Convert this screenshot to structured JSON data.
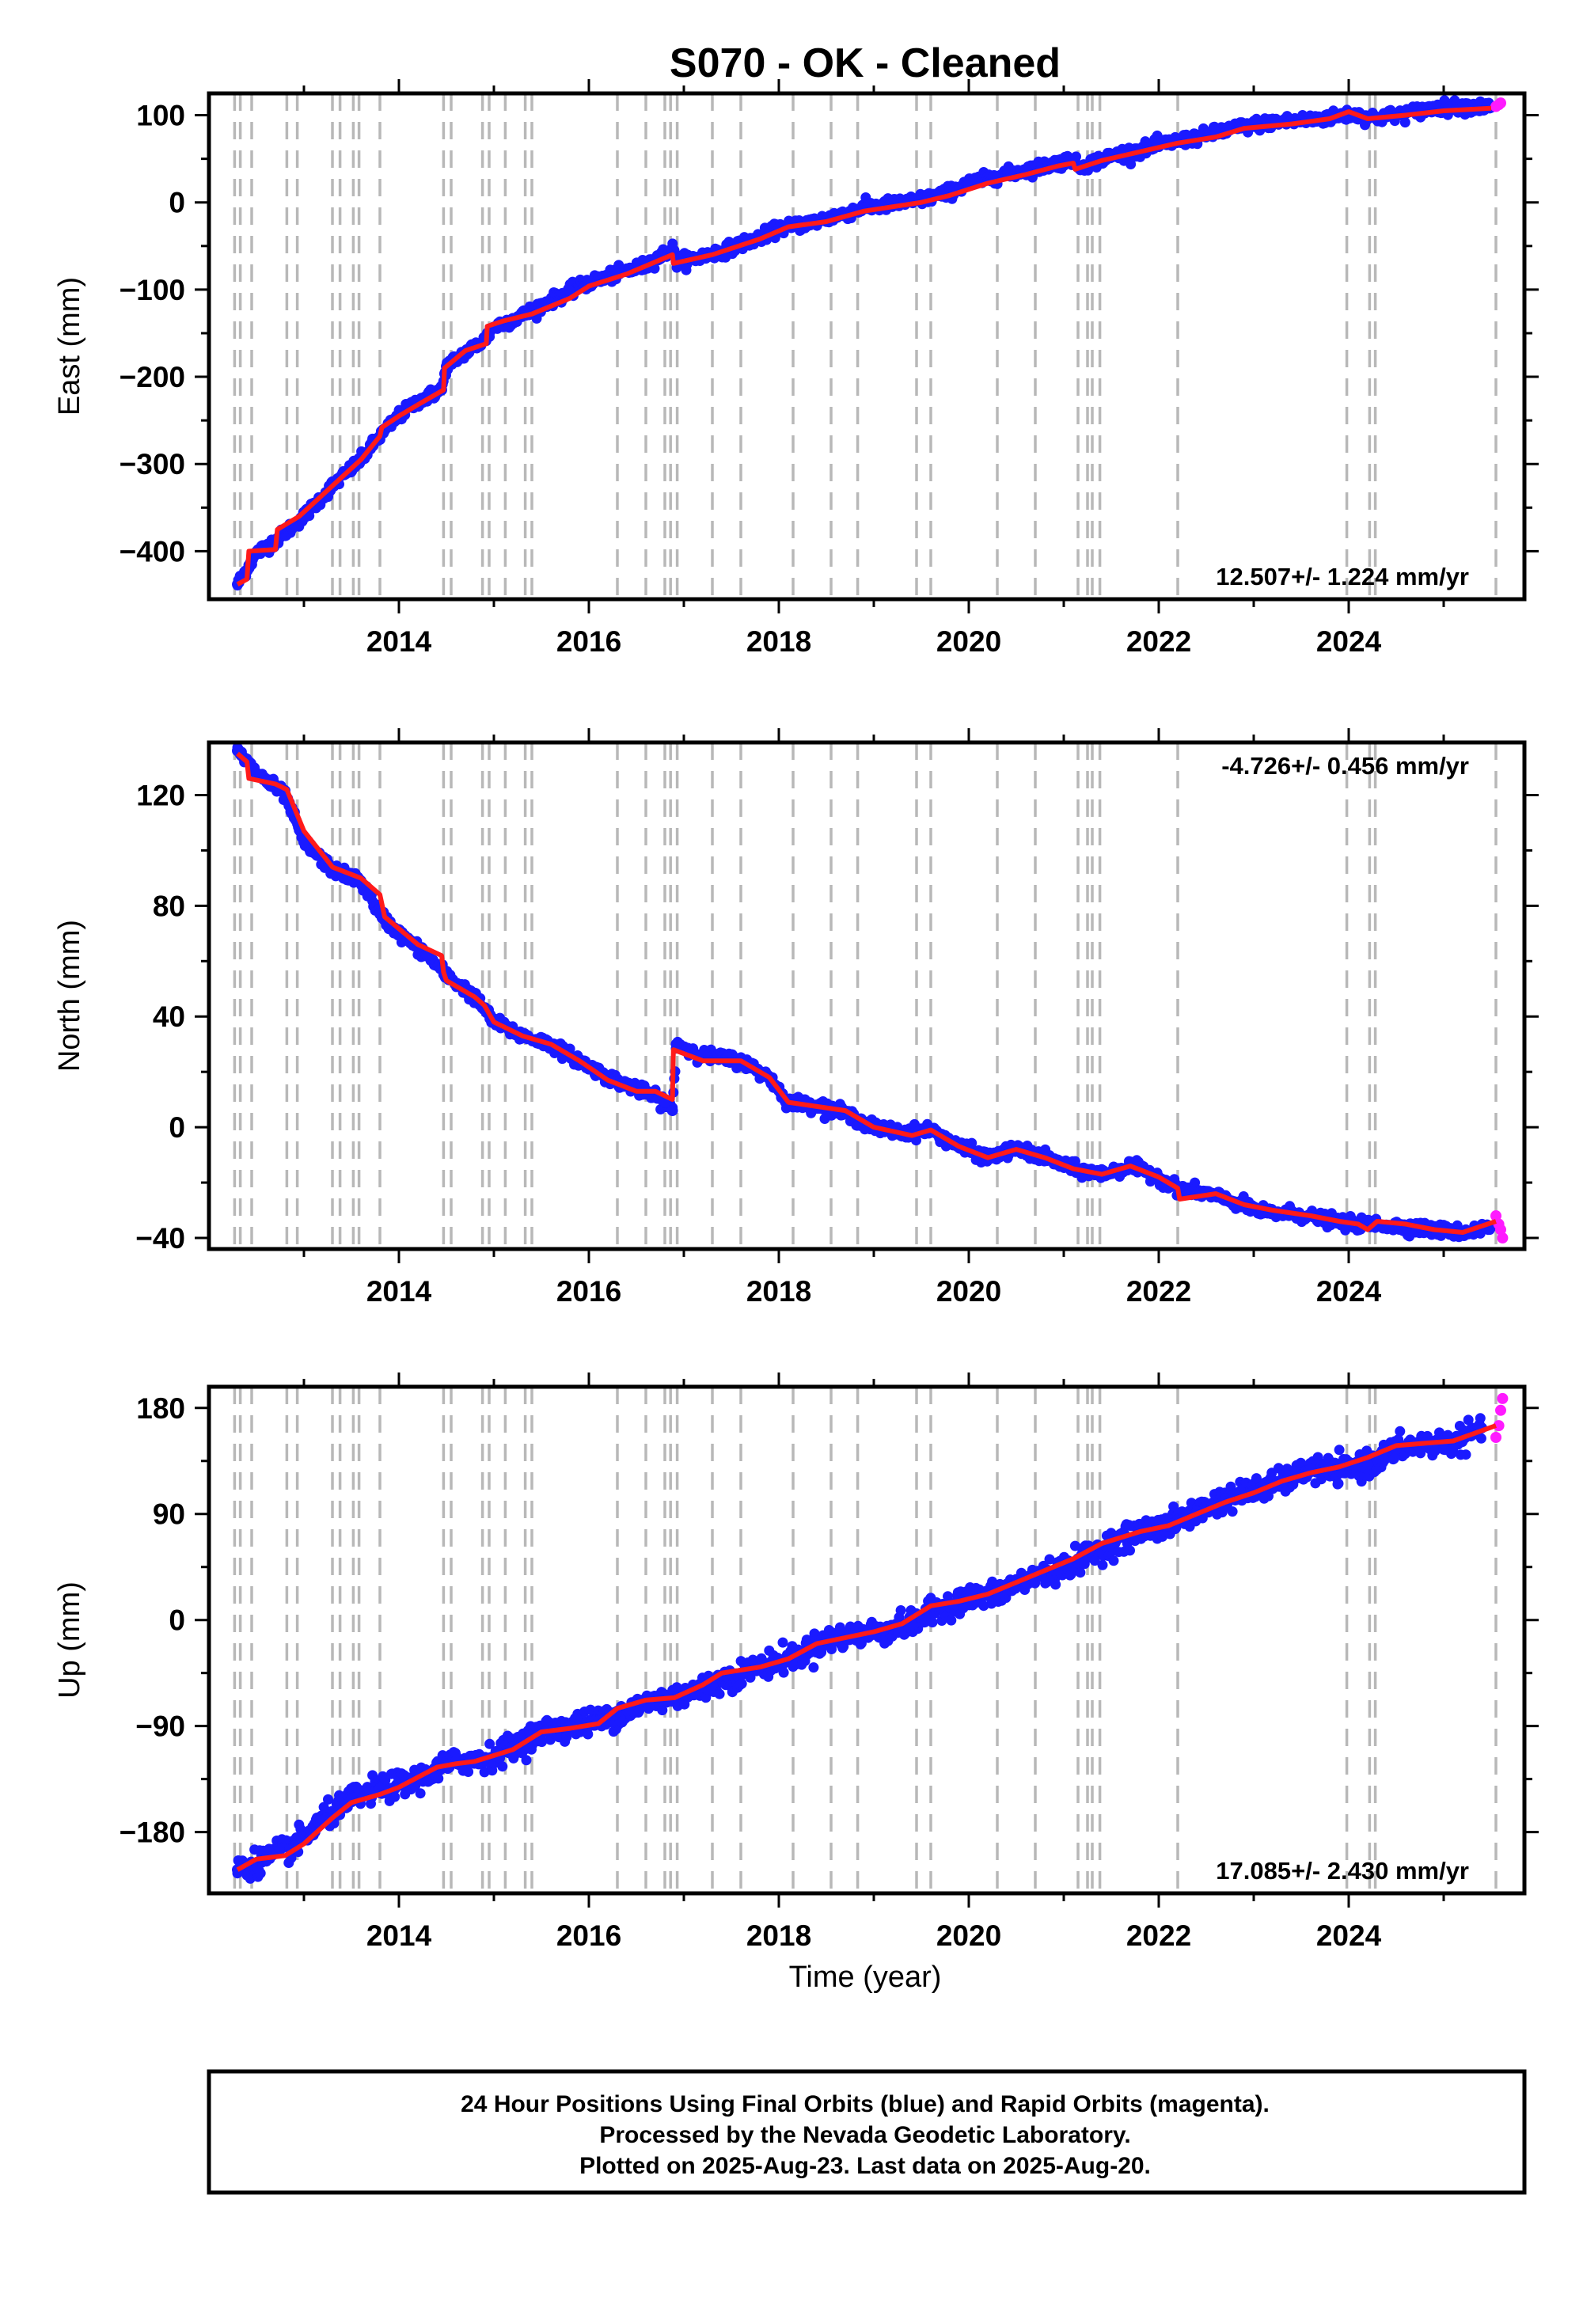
{
  "title": "S070  - OK - Cleaned",
  "xlabel": "Time (year)",
  "footer": {
    "line1": "24 Hour Positions Using Final Orbits (blue) and Rapid Orbits (magenta).",
    "line2": "Processed by the Nevada Geodetic Laboratory.",
    "line3": "Plotted on 2025-Aug-23. Last data on 2025-Aug-20."
  },
  "colors": {
    "final_points": "#1a1aff",
    "rapid_points": "#ff1aff",
    "fit_line": "#ff1a1a",
    "event_lines": "#b8b8b8",
    "frame": "#000000"
  },
  "chart_data": [
    {
      "type": "scatter",
      "panel": "east",
      "ylabel": "East (mm)",
      "rate": "12.507+/- 1.224 mm/yr",
      "rate_position": "bottom-right",
      "xlim": [
        2012.0,
        2025.85
      ],
      "ylim": [
        -455,
        125
      ],
      "xticks": [
        2014,
        2016,
        2018,
        2020,
        2022,
        2024
      ],
      "yticks": [
        -400,
        -300,
        -200,
        -100,
        0,
        100
      ],
      "ytick_labels": [
        "−400",
        "−300",
        "−200",
        "−100",
        "0",
        "100"
      ],
      "series": [
        {
          "x": [
            2012.3,
            2012.5,
            2012.7,
            2013.0,
            2013.3,
            2013.6,
            2013.8,
            2014.0,
            2014.2,
            2014.45,
            2014.5,
            2014.7,
            2014.9,
            2015.0,
            2015.3,
            2015.5,
            2015.8,
            2016.0,
            2016.3,
            2016.6,
            2016.88,
            2016.92,
            2017.2,
            2017.5,
            2017.8,
            2018.0,
            2018.3,
            2018.6,
            2018.9,
            2019.2,
            2019.5,
            2019.8,
            2020.0,
            2020.3,
            2020.6,
            2020.9,
            2021.1,
            2021.15,
            2021.5,
            2021.8,
            2022.0,
            2022.3,
            2022.6,
            2022.9,
            2023.2,
            2023.5,
            2023.8,
            2024.0,
            2024.3,
            2024.6,
            2024.9,
            2025.2,
            2025.5
          ],
          "y": [
            -438,
            -402,
            -388,
            -360,
            -325,
            -295,
            -268,
            -245,
            -228,
            -215,
            -188,
            -172,
            -158,
            -143,
            -130,
            -118,
            -102,
            -92,
            -82,
            -72,
            -53,
            -68,
            -62,
            -52,
            -40,
            -30,
            -24,
            -16,
            -6,
            -2,
            3,
            12,
            22,
            30,
            37,
            44,
            50,
            40,
            53,
            60,
            66,
            72,
            80,
            87,
            92,
            94,
            97,
            101,
            97,
            102,
            108,
            110,
            109
          ],
          "rapid_x": [
            2025.55,
            2025.58,
            2025.6
          ],
          "rapid_y": [
            110,
            112,
            114
          ],
          "fit_x": [
            2012.3,
            2012.4,
            2012.42,
            2012.7,
            2012.72,
            2012.95,
            2013.3,
            2013.6,
            2013.8,
            2013.82,
            2014.0,
            2014.2,
            2014.47,
            2014.48,
            2014.7,
            2014.92,
            2014.93,
            2015.1,
            2015.4,
            2015.8,
            2016.0,
            2016.4,
            2016.88,
            2016.89,
            2017.3,
            2017.8,
            2018.1,
            2018.5,
            2018.9,
            2019.5,
            2019.8,
            2020.2,
            2020.6,
            2020.95,
            2021.1,
            2021.12,
            2021.4,
            2021.8,
            2022.2,
            2022.6,
            2022.9,
            2023.4,
            2023.8,
            2024.0,
            2024.2,
            2024.6,
            2025.0,
            2025.5
          ],
          "fit_y": [
            -438,
            -432,
            -400,
            -398,
            -375,
            -360,
            -325,
            -295,
            -268,
            -258,
            -245,
            -232,
            -215,
            -190,
            -170,
            -162,
            -142,
            -136,
            -128,
            -110,
            -96,
            -82,
            -60,
            -70,
            -60,
            -42,
            -28,
            -22,
            -10,
            0,
            8,
            22,
            32,
            42,
            45,
            38,
            48,
            58,
            68,
            75,
            85,
            90,
            96,
            104,
            96,
            100,
            105,
            108
          ]
        }
      ]
    },
    {
      "type": "scatter",
      "panel": "north",
      "ylabel": "North (mm)",
      "rate": "-4.726+/- 0.456 mm/yr",
      "rate_position": "top-right",
      "xlim": [
        2012.0,
        2025.85
      ],
      "ylim": [
        -44,
        139
      ],
      "xticks": [
        2014,
        2016,
        2018,
        2020,
        2022,
        2024
      ],
      "yticks": [
        -40,
        0,
        40,
        80,
        120
      ],
      "ytick_labels": [
        "−40",
        "0",
        "40",
        "80",
        "120"
      ],
      "series": [
        {
          "x": [
            2012.3,
            2012.5,
            2012.8,
            2013.0,
            2013.3,
            2013.6,
            2013.8,
            2014.0,
            2014.3,
            2014.5,
            2014.8,
            2015.0,
            2015.3,
            2015.6,
            2015.9,
            2016.2,
            2016.5,
            2016.8,
            2016.88,
            2016.92,
            2017.2,
            2017.6,
            2017.9,
            2018.1,
            2018.4,
            2018.7,
            2019.0,
            2019.3,
            2019.6,
            2019.9,
            2020.2,
            2020.5,
            2020.8,
            2021.1,
            2021.4,
            2021.7,
            2022.0,
            2022.2,
            2022.5,
            2022.8,
            2023.1,
            2023.4,
            2023.7,
            2024.0,
            2024.3,
            2024.6,
            2024.9,
            2025.2,
            2025.5
          ],
          "y": [
            136,
            128,
            120,
            103,
            93,
            89,
            77,
            70,
            62,
            55,
            47,
            38,
            33,
            30,
            24,
            18,
            14,
            9,
            6,
            30,
            26,
            24,
            18,
            9,
            8,
            5,
            0,
            -2,
            -1,
            -7,
            -11,
            -8,
            -11,
            -15,
            -17,
            -14,
            -18,
            -22,
            -24,
            -27,
            -31,
            -31,
            -33,
            -35,
            -35,
            -36,
            -37,
            -38,
            -36
          ],
          "rapid_x": [
            2025.55,
            2025.58,
            2025.6,
            2025.62
          ],
          "rapid_y": [
            -32,
            -35,
            -37,
            -40
          ],
          "fit_x": [
            2012.3,
            2012.4,
            2012.42,
            2012.7,
            2012.82,
            2013.0,
            2013.3,
            2013.6,
            2013.8,
            2013.85,
            2014.2,
            2014.45,
            2014.47,
            2014.5,
            2014.8,
            2014.9,
            2015.0,
            2015.3,
            2015.6,
            2015.9,
            2016.2,
            2016.5,
            2016.7,
            2016.88,
            2016.89,
            2017.2,
            2017.6,
            2017.9,
            2018.1,
            2018.3,
            2018.7,
            2019.0,
            2019.4,
            2019.6,
            2019.9,
            2020.2,
            2020.5,
            2020.8,
            2021.1,
            2021.4,
            2021.7,
            2022.0,
            2022.2,
            2022.22,
            2022.6,
            2022.9,
            2023.2,
            2023.6,
            2023.9,
            2024.1,
            2024.2,
            2024.3,
            2024.6,
            2024.9,
            2025.2,
            2025.55
          ],
          "fit_y": [
            135,
            132,
            126,
            124,
            122,
            107,
            94,
            90,
            84,
            76,
            66,
            62,
            56,
            53,
            47,
            44,
            38,
            33,
            30,
            24,
            17,
            13,
            13,
            10,
            28,
            24,
            24,
            18,
            9,
            8,
            6,
            0,
            -3,
            -1,
            -7,
            -11,
            -8,
            -11,
            -15,
            -17,
            -14,
            -18,
            -22,
            -26,
            -24,
            -28,
            -30,
            -32,
            -34,
            -35,
            -37,
            -34,
            -35,
            -37,
            -38,
            -34
          ]
        }
      ]
    },
    {
      "type": "scatter",
      "panel": "up",
      "ylabel": "Up (mm)",
      "rate": "17.085+/- 2.430 mm/yr",
      "rate_position": "bottom-right",
      "xlim": [
        2012.0,
        2025.85
      ],
      "ylim": [
        -232,
        198
      ],
      "xticks": [
        2014,
        2016,
        2018,
        2020,
        2022,
        2024
      ],
      "yticks": [
        -180,
        -90,
        0,
        90,
        180
      ],
      "ytick_labels": [
        "−180",
        "−90",
        "0",
        "90",
        "180"
      ],
      "series": [
        {
          "x": [
            2012.3,
            2012.6,
            2012.9,
            2013.2,
            2013.5,
            2013.8,
            2014.1,
            2014.4,
            2014.6,
            2014.9,
            2015.2,
            2015.5,
            2015.8,
            2016.1,
            2016.4,
            2016.7,
            2017.0,
            2017.3,
            2017.6,
            2017.9,
            2018.2,
            2018.5,
            2018.8,
            2019.1,
            2019.4,
            2019.7,
            2020.0,
            2020.3,
            2020.6,
            2020.9,
            2021.2,
            2021.5,
            2021.8,
            2022.1,
            2022.4,
            2022.7,
            2023.0,
            2023.3,
            2023.6,
            2023.9,
            2024.2,
            2024.5,
            2024.8,
            2025.1,
            2025.4
          ],
          "y": [
            -212,
            -202,
            -192,
            -170,
            -152,
            -143,
            -138,
            -128,
            -120,
            -118,
            -108,
            -95,
            -90,
            -86,
            -77,
            -68,
            -63,
            -55,
            -45,
            -37,
            -30,
            -17,
            -13,
            -9,
            -4,
            11,
            18,
            22,
            34,
            42,
            52,
            65,
            75,
            80,
            92,
            103,
            110,
            117,
            128,
            126,
            132,
            145,
            150,
            150,
            163
          ],
          "rapid_x": [
            2025.55,
            2025.58,
            2025.6,
            2025.62
          ],
          "rapid_y": [
            155,
            165,
            178,
            188
          ],
          "fit_x": [
            2012.3,
            2012.5,
            2012.8,
            2013.0,
            2013.3,
            2013.5,
            2013.8,
            2014.0,
            2014.4,
            2014.6,
            2014.8,
            2015.0,
            2015.2,
            2015.5,
            2015.8,
            2016.1,
            2016.3,
            2016.6,
            2016.9,
            2017.2,
            2017.4,
            2017.8,
            2018.1,
            2018.4,
            2018.7,
            2019.0,
            2019.3,
            2019.6,
            2019.9,
            2020.2,
            2020.5,
            2020.8,
            2021.1,
            2021.4,
            2021.8,
            2022.1,
            2022.4,
            2022.7,
            2023.0,
            2023.3,
            2023.6,
            2023.9,
            2024.2,
            2024.5,
            2024.8,
            2025.1,
            2025.55
          ],
          "fit_y": [
            -212,
            -203,
            -200,
            -190,
            -168,
            -155,
            -148,
            -142,
            -125,
            -122,
            -120,
            -115,
            -110,
            -95,
            -92,
            -88,
            -75,
            -68,
            -66,
            -55,
            -45,
            -40,
            -33,
            -20,
            -15,
            -10,
            -3,
            12,
            16,
            22,
            32,
            42,
            52,
            65,
            75,
            80,
            90,
            100,
            108,
            118,
            125,
            130,
            138,
            148,
            150,
            152,
            165
          ]
        }
      ]
    }
  ],
  "event_lines": [
    2012.27,
    2012.33,
    2012.45,
    2012.82,
    2012.93,
    2013.3,
    2013.38,
    2013.52,
    2013.58,
    2013.8,
    2014.47,
    2014.55,
    2014.88,
    2014.95,
    2015.12,
    2015.33,
    2015.4,
    2016.3,
    2016.6,
    2016.8,
    2016.86,
    2016.93,
    2017.3,
    2017.6,
    2018.15,
    2018.55,
    2018.83,
    2019.45,
    2019.6,
    2020.3,
    2020.7,
    2021.15,
    2021.25,
    2021.3,
    2021.38,
    2022.2,
    2023.98,
    2024.22,
    2024.28,
    2025.55
  ]
}
